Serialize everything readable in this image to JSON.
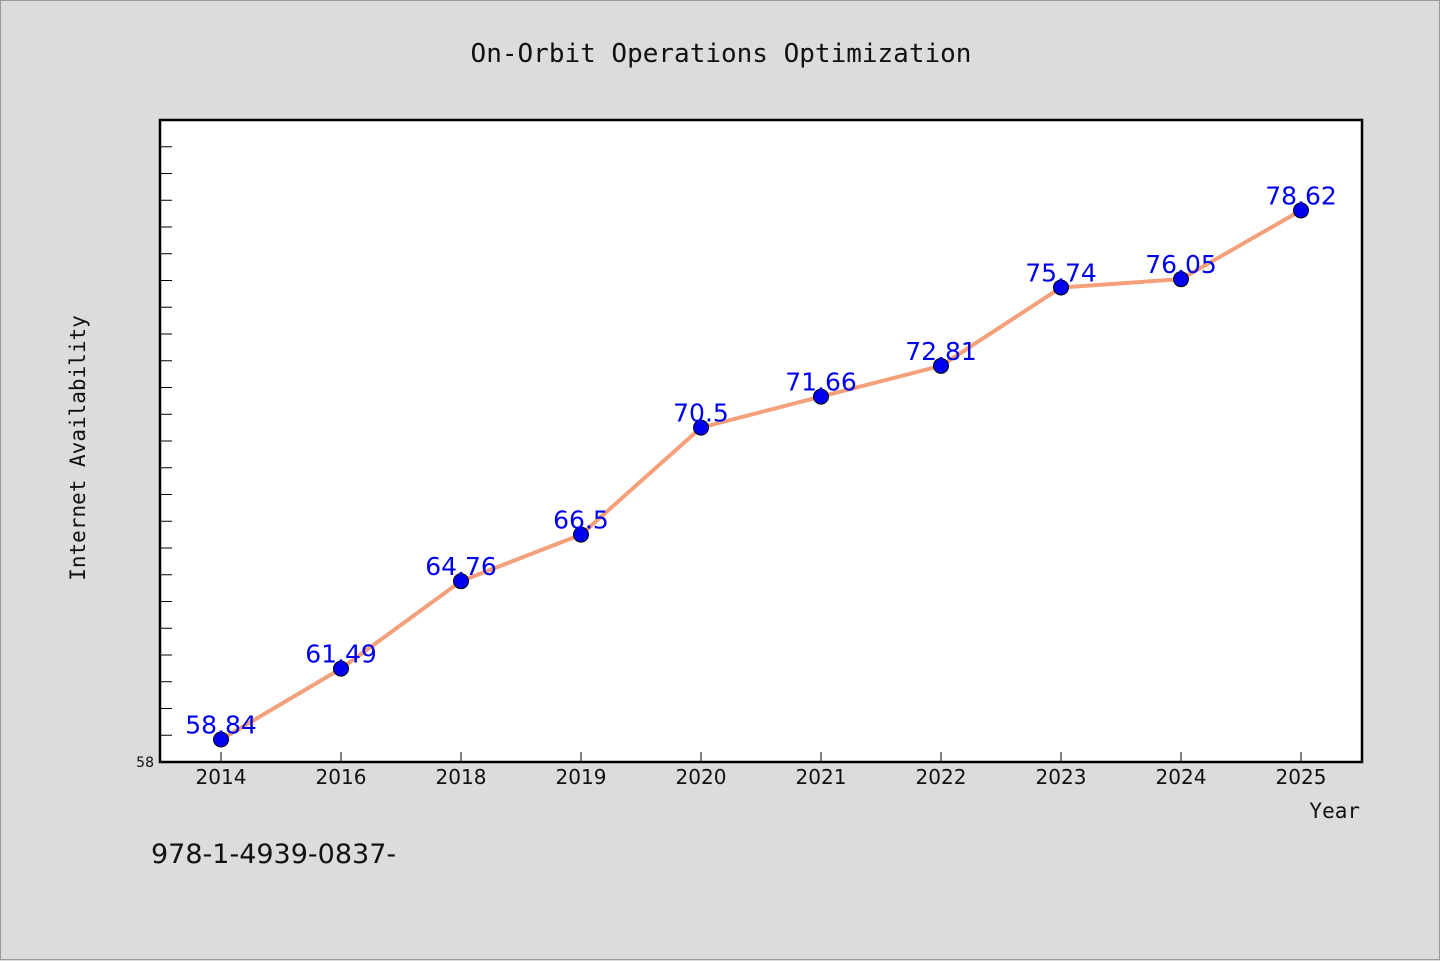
{
  "chart_data": {
    "type": "line",
    "title": "On-Orbit Operations Optimization",
    "xlabel": "Year",
    "ylabel": "Internet Availability",
    "categories": [
      "2014",
      "2016",
      "2018",
      "2019",
      "2020",
      "2021",
      "2022",
      "2023",
      "2024",
      "2025"
    ],
    "series": [
      {
        "values": [
          58.84,
          61.49,
          64.76,
          66.5,
          70.5,
          71.66,
          72.81,
          75.74,
          76.05,
          78.62
        ],
        "data_labels": [
          "58.84",
          "61.49",
          "64.76",
          "66.5",
          "70.5",
          "71.66",
          "72.81",
          "75.74",
          "76.05",
          "78.62"
        ],
        "line_color": "#f4a07a",
        "marker_color": "#0000ee",
        "label_color": "#0000ee"
      }
    ],
    "ylim": [
      58,
      82
    ],
    "ytick_labels": [
      "58"
    ],
    "grid": false,
    "legend": "none"
  },
  "footer_text": "978-1-4939-0837-",
  "colors": {
    "background": "#dcdcdc",
    "plot_background": "#ffffff",
    "axis": "#000000"
  }
}
